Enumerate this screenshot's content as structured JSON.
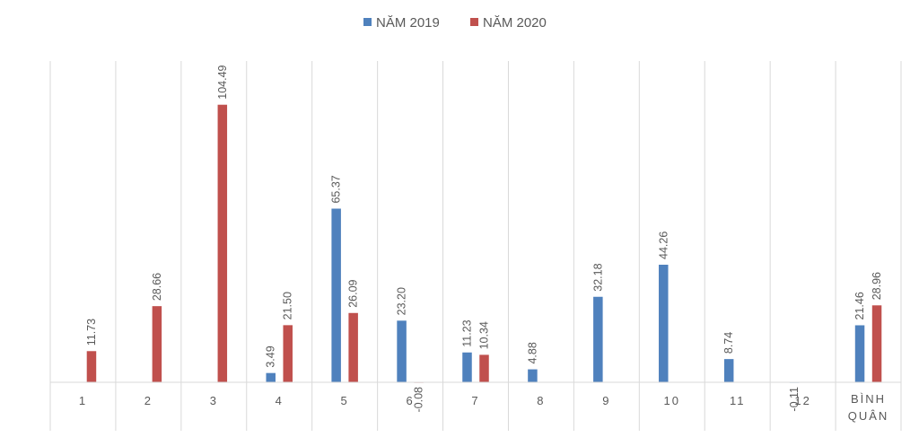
{
  "chart_data": {
    "type": "bar",
    "title": "",
    "xlabel": "",
    "ylabel": "",
    "ylim": [
      -2,
      116
    ],
    "grid": "vertical category separators",
    "legend_position": "top-center",
    "categories": [
      "1",
      "2",
      "3",
      "4",
      "5",
      "6",
      "7",
      "8",
      "9",
      "10",
      "11",
      "12",
      "BÌNH QUÂN"
    ],
    "series": [
      {
        "name": "NĂM 2019",
        "color": "#4F81BD",
        "values": [
          null,
          null,
          null,
          3.49,
          65.37,
          23.2,
          11.23,
          4.88,
          32.18,
          44.26,
          8.74,
          -0.11,
          21.46
        ],
        "labels": [
          "",
          "",
          "",
          "3.49",
          "65.37",
          "23.20",
          "11.23",
          "4.88",
          "32.18",
          "44.26",
          "8.74",
          "-0.11",
          "21.46"
        ]
      },
      {
        "name": "NĂM 2020",
        "color": "#C0504D",
        "values": [
          11.73,
          28.66,
          104.49,
          21.5,
          26.09,
          -0.08,
          10.34,
          null,
          null,
          null,
          null,
          null,
          28.96
        ],
        "labels": [
          "11.73",
          "28.66",
          "104.49",
          "21.50",
          "26.09",
          "-0.08",
          "10.34",
          "",
          "",
          "",
          "",
          "",
          "28.96"
        ]
      }
    ]
  }
}
